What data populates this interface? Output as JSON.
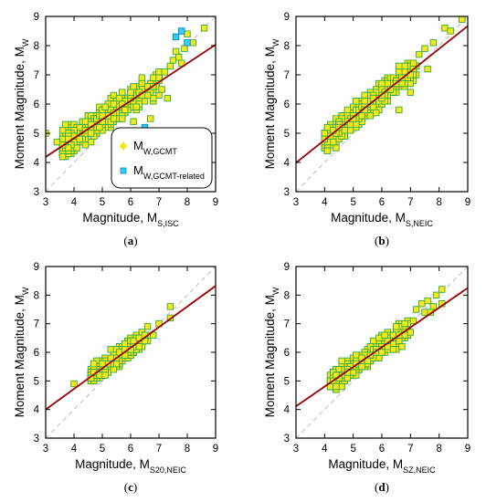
{
  "colors": {
    "fit_line": "#c00000",
    "fit_line_under": "#000000",
    "reference_line": "#bbbbbb",
    "marker_fill": "#f2ea1c",
    "marker_edge": "#3aa83a",
    "related_fill": "#33ccff",
    "related_edge": "#0088bb"
  },
  "legend": {
    "entries": [
      {
        "main": "M",
        "sub": "W,GCMT",
        "marker": "yellow-square"
      },
      {
        "main": "M",
        "sub": "W,GCMT-related",
        "marker": "cyan-square"
      }
    ]
  },
  "chart_data": [
    {
      "type": "scatter",
      "panel_label": "(a)",
      "xlabel_main": "Magnitude, M",
      "xlabel_sub": "S,ISC",
      "ylabel_main": "Moment Magnitude, M",
      "ylabel_sub": "W",
      "xlim": [
        3,
        9
      ],
      "ylim": [
        3,
        9
      ],
      "xticks": [
        3,
        4,
        5,
        6,
        7,
        8,
        9
      ],
      "yticks": [
        3,
        4,
        5,
        6,
        7,
        8,
        9
      ],
      "grid": false,
      "legend_position": "bottom-right",
      "fit": {
        "slope": 0.64,
        "intercept": 2.28
      },
      "reference_line": {
        "slope": 1,
        "intercept": 0
      },
      "cloud": {
        "xmin": 3.6,
        "xmax": 7.0,
        "spread": 0.45
      },
      "series": [
        {
          "name": "M W,GCMT",
          "points": [
            [
              3.0,
              5.0
            ],
            [
              3.4,
              4.7
            ],
            [
              3.7,
              5.3
            ],
            [
              6.1,
              5.4
            ],
            [
              6.7,
              5.5
            ],
            [
              6.8,
              6.6
            ],
            [
              7.1,
              6.5
            ],
            [
              7.2,
              7.1
            ],
            [
              7.4,
              7.3
            ],
            [
              7.5,
              7.5
            ],
            [
              7.6,
              7.8
            ],
            [
              7.7,
              7.6
            ],
            [
              7.8,
              7.4
            ],
            [
              7.9,
              7.9
            ],
            [
              8.0,
              8.4
            ],
            [
              8.2,
              8.1
            ],
            [
              8.6,
              8.6
            ],
            [
              7.3,
              6.2
            ]
          ]
        },
        {
          "name": "M W,GCMT-related",
          "points": [
            [
              7.6,
              8.3
            ],
            [
              7.8,
              8.5
            ],
            [
              8.0,
              8.1
            ],
            [
              6.5,
              5.2
            ]
          ]
        }
      ]
    },
    {
      "type": "scatter",
      "panel_label": "(b)",
      "xlabel_main": "Magnitude, M",
      "xlabel_sub": "S,NEIC",
      "ylabel_main": "Moment Magnitude, M",
      "ylabel_sub": "W",
      "xlim": [
        3,
        9
      ],
      "ylim": [
        3,
        9
      ],
      "xticks": [
        3,
        4,
        5,
        6,
        7,
        8,
        9
      ],
      "yticks": [
        3,
        4,
        5,
        6,
        7,
        8,
        9
      ],
      "grid": false,
      "fit": {
        "slope": 0.78,
        "intercept": 1.66
      },
      "reference_line": {
        "slope": 1,
        "intercept": 0
      },
      "cloud": {
        "xmin": 4.0,
        "xmax": 7.2,
        "spread": 0.4
      },
      "series": [
        {
          "name": "M W,GCMT",
          "points": [
            [
              4.0,
              4.8
            ],
            [
              7.3,
              7.7
            ],
            [
              7.5,
              7.9
            ],
            [
              7.6,
              7.2
            ],
            [
              7.8,
              8.1
            ],
            [
              7.1,
              7.4
            ],
            [
              7.0,
              6.4
            ],
            [
              8.2,
              8.6
            ],
            [
              8.4,
              8.5
            ],
            [
              8.8,
              8.9
            ],
            [
              6.6,
              5.8
            ]
          ]
        }
      ]
    },
    {
      "type": "scatter",
      "panel_label": "(c)",
      "xlabel_main": "Magnitude, M",
      "xlabel_sub": "S20,NEIC",
      "ylabel_main": "Moment Magnitude, M",
      "ylabel_sub": "W",
      "xlim": [
        3,
        9
      ],
      "ylim": [
        3,
        9
      ],
      "xticks": [
        3,
        4,
        5,
        6,
        7,
        8,
        9
      ],
      "yticks": [
        3,
        4,
        5,
        6,
        7,
        8,
        9
      ],
      "grid": false,
      "fit": {
        "slope": 0.72,
        "intercept": 1.85
      },
      "reference_line": {
        "slope": 1,
        "intercept": 0
      },
      "cloud": {
        "xmin": 4.6,
        "xmax": 6.6,
        "spread": 0.3
      },
      "series": [
        {
          "name": "M W,GCMT",
          "points": [
            [
              4.0,
              4.9
            ],
            [
              6.8,
              6.6
            ],
            [
              7.0,
              7.0
            ],
            [
              7.4,
              7.6
            ],
            [
              7.4,
              7.2
            ],
            [
              6.5,
              6.6
            ]
          ]
        }
      ]
    },
    {
      "type": "scatter",
      "panel_label": "(d)",
      "xlabel_main": "Magnitude, M",
      "xlabel_sub": "SZ,NEIC",
      "ylabel_main": "Moment Magnitude, M",
      "ylabel_sub": "W",
      "xlim": [
        3,
        9
      ],
      "ylim": [
        3,
        9
      ],
      "xticks": [
        3,
        4,
        5,
        6,
        7,
        8,
        9
      ],
      "yticks": [
        3,
        4,
        5,
        6,
        7,
        8,
        9
      ],
      "grid": false,
      "fit": {
        "slope": 0.69,
        "intercept": 2.05
      },
      "reference_line": {
        "slope": 1,
        "intercept": 0
      },
      "cloud": {
        "xmin": 4.2,
        "xmax": 6.9,
        "spread": 0.35
      },
      "series": [
        {
          "name": "M W,GCMT",
          "points": [
            [
              7.1,
              7.1
            ],
            [
              7.2,
              7.5
            ],
            [
              7.4,
              7.7
            ],
            [
              7.6,
              7.8
            ],
            [
              7.5,
              7.4
            ],
            [
              7.8,
              7.6
            ],
            [
              7.9,
              8.0
            ],
            [
              8.1,
              8.2
            ],
            [
              8.1,
              7.7
            ],
            [
              7.7,
              7.4
            ],
            [
              7.0,
              6.7
            ]
          ]
        }
      ]
    }
  ]
}
